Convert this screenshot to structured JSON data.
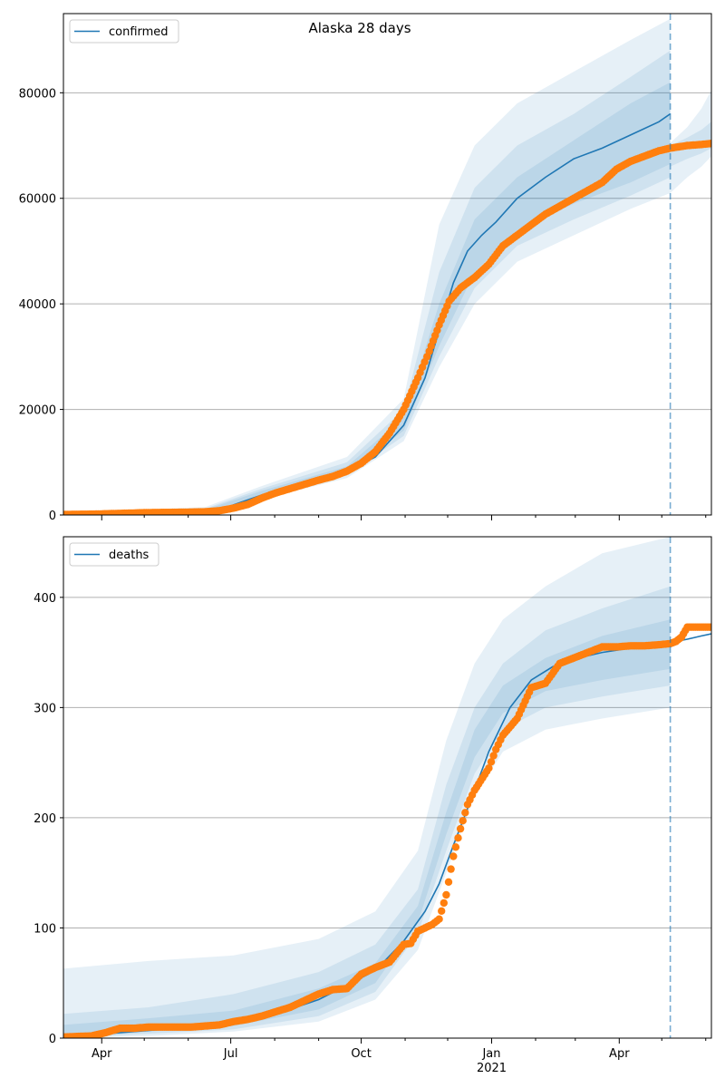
{
  "figure_title": "Alaska 28 days",
  "colors": {
    "model_line": "#1f77b4",
    "observed_points": "#ff7f0e",
    "band": "#1f77b4",
    "grid": "#b0b0b0",
    "forecast_marker": "#1f77b4"
  },
  "x_axis": {
    "domain_days": [
      0,
      457
    ],
    "major_ticks": [
      {
        "day": 27,
        "label": "Apr",
        "sublabel": ""
      },
      {
        "day": 118,
        "label": "Jul",
        "sublabel": ""
      },
      {
        "day": 210,
        "label": "Oct",
        "sublabel": ""
      },
      {
        "day": 302,
        "label": "Jan",
        "sublabel": "2021"
      },
      {
        "day": 392,
        "label": "Apr",
        "sublabel": ""
      }
    ],
    "minor_ticks": [
      57,
      88,
      149,
      180,
      241,
      271,
      333,
      361,
      422,
      453
    ],
    "forecast_line_day": 428
  },
  "chart_data": [
    {
      "type": "line",
      "legend": "confirmed",
      "legend_position": "top-left",
      "grid": true,
      "ylim": [
        0,
        95000
      ],
      "yticks": [
        0,
        20000,
        40000,
        60000,
        80000
      ],
      "series": [
        {
          "name": "confirmed",
          "kind": "model",
          "x": [
            0,
            40,
            80,
            110,
            140,
            170,
            200,
            220,
            240,
            255,
            265,
            275,
            285,
            295,
            305,
            320,
            340,
            360,
            380,
            400,
            420,
            428
          ],
          "y": [
            150,
            300,
            500,
            1000,
            3800,
            6000,
            8200,
            11000,
            17000,
            26000,
            35000,
            44000,
            50000,
            53000,
            55500,
            60000,
            64000,
            67500,
            69500,
            72000,
            74500,
            76000
          ]
        },
        {
          "name": "observed",
          "kind": "points",
          "x": [
            0,
            20,
            40,
            60,
            80,
            100,
            110,
            120,
            130,
            140,
            150,
            160,
            170,
            180,
            190,
            200,
            210,
            220,
            230,
            240,
            250,
            258,
            265,
            272,
            280,
            290,
            300,
            310,
            320,
            330,
            340,
            350,
            360,
            370,
            380,
            390,
            400,
            410,
            420,
            428,
            440,
            450,
            457
          ],
          "y": [
            100,
            150,
            300,
            450,
            500,
            600,
            800,
            1300,
            2000,
            3200,
            4200,
            5000,
            5800,
            6600,
            7300,
            8300,
            9800,
            12000,
            15500,
            20000,
            26000,
            31000,
            36000,
            40500,
            43000,
            45000,
            47500,
            51000,
            53000,
            55000,
            57000,
            58500,
            60000,
            61500,
            63000,
            65500,
            67000,
            68000,
            69000,
            69500,
            70000,
            70200,
            70400
          ]
        }
      ],
      "bands": [
        {
          "x": [
            0,
            100,
            140,
            200,
            240,
            265,
            290,
            320,
            360,
            400,
            428
          ],
          "lower": [
            0,
            300,
            3000,
            7000,
            14000,
            28000,
            40000,
            48000,
            53000,
            58000,
            61000
          ],
          "upper": [
            400,
            1500,
            5500,
            11000,
            22000,
            55000,
            70000,
            78000,
            84000,
            90000,
            94000
          ]
        },
        {
          "x": [
            0,
            100,
            140,
            200,
            240,
            265,
            290,
            320,
            360,
            400,
            428
          ],
          "lower": [
            50,
            500,
            3300,
            7500,
            15000,
            30000,
            43000,
            51000,
            56000,
            60500,
            64000
          ],
          "upper": [
            300,
            1200,
            5000,
            10000,
            20000,
            46000,
            62000,
            70000,
            76000,
            83000,
            88000
          ]
        },
        {
          "x": [
            0,
            100,
            140,
            200,
            240,
            265,
            290,
            320,
            360,
            400,
            428
          ],
          "lower": [
            100,
            600,
            3600,
            7900,
            16000,
            32000,
            46000,
            54000,
            59000,
            63000,
            66500
          ],
          "upper": [
            250,
            1000,
            4600,
            9200,
            18500,
            40000,
            56000,
            64000,
            71000,
            78000,
            82000
          ]
        }
      ],
      "post_bands": [
        {
          "x": [
            428,
            440,
            450,
            457
          ],
          "lower": [
            61000,
            64000,
            66000,
            68000
          ],
          "upper": [
            70500,
            73500,
            77000,
            80500
          ]
        },
        {
          "x": [
            428,
            440,
            450,
            457
          ],
          "lower": [
            66000,
            67500,
            68500,
            69500
          ],
          "upper": [
            70000,
            71500,
            73000,
            74500
          ]
        }
      ]
    },
    {
      "type": "line",
      "legend": "deaths",
      "legend_position": "top-left",
      "grid": true,
      "ylim": [
        0,
        455
      ],
      "yticks": [
        0,
        100,
        200,
        300,
        400
      ],
      "series": [
        {
          "name": "deaths",
          "kind": "model",
          "x": [
            0,
            40,
            80,
            120,
            150,
            180,
            200,
            215,
            225,
            240,
            255,
            265,
            275,
            290,
            300,
            315,
            330,
            345,
            360,
            380,
            400,
            420,
            428,
            440,
            450,
            457
          ],
          "y": [
            1,
            5,
            9,
            14,
            22,
            35,
            48,
            58,
            68,
            88,
            115,
            140,
            175,
            225,
            260,
            300,
            325,
            337,
            344,
            350,
            354,
            357,
            359,
            362,
            365,
            367
          ]
        },
        {
          "name": "observed",
          "kind": "points",
          "x": [
            0,
            20,
            30,
            40,
            50,
            60,
            70,
            80,
            90,
            100,
            110,
            120,
            130,
            140,
            150,
            160,
            170,
            180,
            190,
            200,
            210,
            220,
            230,
            240,
            245,
            250,
            255,
            260,
            265,
            270,
            275,
            280,
            285,
            290,
            300,
            305,
            310,
            320,
            330,
            340,
            350,
            360,
            370,
            380,
            390,
            400,
            410,
            420,
            428,
            432,
            436,
            440,
            450,
            457
          ],
          "y": [
            1,
            2,
            5,
            9,
            9,
            10,
            10,
            10,
            10,
            11,
            12,
            15,
            17,
            20,
            24,
            28,
            34,
            40,
            44,
            45,
            58,
            64,
            69,
            85,
            86,
            97,
            100,
            103,
            108,
            130,
            165,
            190,
            212,
            225,
            245,
            262,
            275,
            290,
            318,
            322,
            340,
            345,
            350,
            355,
            355,
            356,
            356,
            357,
            358,
            360,
            364,
            373,
            373,
            373
          ]
        }
      ],
      "bands": [
        {
          "x": [
            0,
            60,
            120,
            180,
            220,
            250,
            270,
            290,
            310,
            340,
            380,
            428
          ],
          "lower": [
            0,
            2,
            6,
            15,
            35,
            80,
            150,
            220,
            260,
            280,
            290,
            300
          ],
          "upper": [
            63,
            70,
            75,
            90,
            115,
            170,
            270,
            340,
            380,
            410,
            440,
            455
          ]
        },
        {
          "x": [
            0,
            60,
            120,
            180,
            220,
            250,
            270,
            290,
            310,
            340,
            380,
            428
          ],
          "lower": [
            0,
            4,
            8,
            20,
            42,
            95,
            170,
            240,
            280,
            300,
            310,
            320
          ],
          "upper": [
            22,
            28,
            40,
            60,
            85,
            135,
            230,
            300,
            340,
            370,
            390,
            410
          ]
        },
        {
          "x": [
            0,
            60,
            120,
            180,
            220,
            250,
            270,
            290,
            310,
            340,
            380,
            428
          ],
          "lower": [
            0,
            6,
            11,
            26,
            50,
            105,
            185,
            255,
            295,
            315,
            325,
            335
          ],
          "upper": [
            12,
            18,
            25,
            45,
            68,
            120,
            205,
            280,
            320,
            345,
            365,
            380
          ]
        }
      ],
      "post_bands": []
    }
  ]
}
